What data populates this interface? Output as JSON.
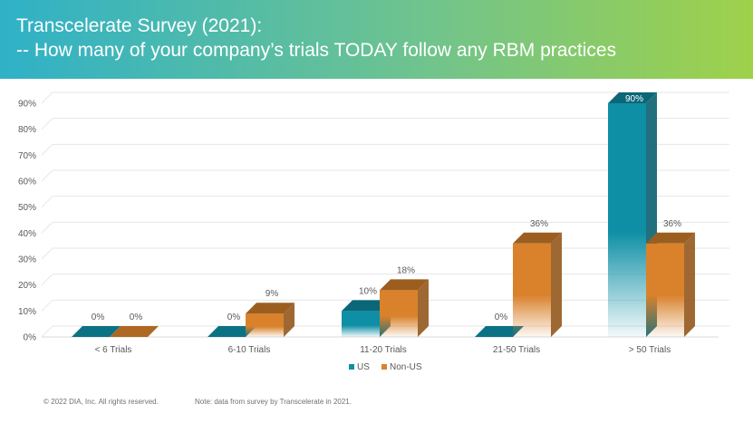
{
  "header": {
    "title_line1": "Transcelerate Survey (2021):",
    "title_line2": "-- How many of your company’s trials TODAY follow any RBM practices"
  },
  "footer": {
    "copyright": "© 2022 DIA, Inc. All rights reserved.",
    "note": "Note: data from survey by Transcelerate in 2021."
  },
  "colors": {
    "us": "#0e8fa5",
    "non_us": "#d9822b",
    "grid": "#e6e6e6",
    "text": "#595959"
  },
  "chart_data": {
    "type": "bar",
    "style": "3d-clustered",
    "categories": [
      "< 6 Trials",
      "6-10 Trials",
      "11-20 Trials",
      "21-50 Trials",
      "> 50 Trials"
    ],
    "series": [
      {
        "name": "US",
        "values": [
          0,
          0,
          10,
          0,
          90
        ],
        "labels": [
          "0%",
          "0%",
          "10%",
          "0%",
          "90%"
        ]
      },
      {
        "name": "Non-US",
        "values": [
          0,
          9,
          18,
          36,
          36
        ],
        "labels": [
          "0%",
          "9%",
          "18%",
          "36%",
          "36%"
        ]
      }
    ],
    "ylim": [
      0,
      90
    ],
    "yticks": [
      "0%",
      "10%",
      "20%",
      "30%",
      "40%",
      "50%",
      "60%",
      "70%",
      "80%",
      "90%"
    ],
    "grid": true,
    "legend_position": "bottom"
  }
}
